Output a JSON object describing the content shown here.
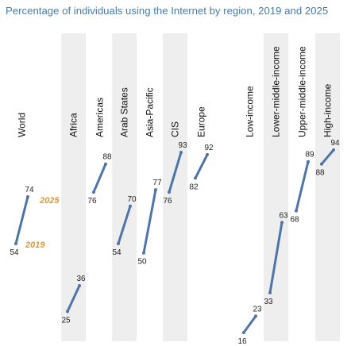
{
  "title": "Percentage of individuals using the Internet by region, 2019 and 2025",
  "colors": {
    "title": "#3f7fb6",
    "line": "#4f74a8",
    "band": "#eeeeee",
    "year_label": "#e9962a"
  },
  "chart_data": {
    "type": "line",
    "title": "Percentage of individuals using the Internet by region, 2019 and 2025",
    "xlabel": "",
    "ylabel": "",
    "ylim": [
      10,
      100
    ],
    "grid": false,
    "series_years": [
      "2019",
      "2025"
    ],
    "year_labels": {
      "start": "2019",
      "end": "2025"
    },
    "categories": [
      "World",
      "Africa",
      "Americas",
      "Arab States",
      "Asia-Pacific",
      "CIS",
      "Europe",
      "Low-income",
      "Lower-middle-income",
      "Upper-middle-income",
      "High-income"
    ],
    "series": [
      {
        "values": [
          54,
          25,
          76,
          54,
          50,
          76,
          82,
          16,
          33,
          68,
          88
        ]
      },
      {
        "values": [
          74,
          36,
          88,
          70,
          77,
          93,
          92,
          23,
          63,
          89,
          94
        ]
      }
    ]
  }
}
